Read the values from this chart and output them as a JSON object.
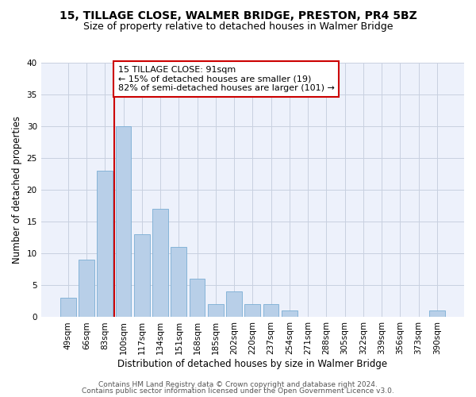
{
  "title": "15, TILLAGE CLOSE, WALMER BRIDGE, PRESTON, PR4 5BZ",
  "subtitle": "Size of property relative to detached houses in Walmer Bridge",
  "xlabel": "Distribution of detached houses by size in Walmer Bridge",
  "ylabel": "Number of detached properties",
  "categories": [
    "49sqm",
    "66sqm",
    "83sqm",
    "100sqm",
    "117sqm",
    "134sqm",
    "151sqm",
    "168sqm",
    "185sqm",
    "202sqm",
    "220sqm",
    "237sqm",
    "254sqm",
    "271sqm",
    "288sqm",
    "305sqm",
    "322sqm",
    "339sqm",
    "356sqm",
    "373sqm",
    "390sqm"
  ],
  "values": [
    3,
    9,
    23,
    30,
    13,
    17,
    11,
    6,
    2,
    4,
    2,
    2,
    1,
    0,
    0,
    0,
    0,
    0,
    0,
    0,
    1
  ],
  "bar_color": "#b8cfe8",
  "bar_edge_color": "#7aadd4",
  "annotation_text": "15 TILLAGE CLOSE: 91sqm\n← 15% of detached houses are smaller (19)\n82% of semi-detached houses are larger (101) →",
  "annotation_box_color": "#ffffff",
  "annotation_box_edge": "#cc0000",
  "ref_line_color": "#cc0000",
  "ylim": [
    0,
    40
  ],
  "yticks": [
    0,
    5,
    10,
    15,
    20,
    25,
    30,
    35,
    40
  ],
  "footer_line1": "Contains HM Land Registry data © Crown copyright and database right 2024.",
  "footer_line2": "Contains public sector information licensed under the Open Government Licence v3.0.",
  "bg_color": "#edf1fb",
  "grid_color": "#c8d0e0",
  "title_fontsize": 10,
  "subtitle_fontsize": 9,
  "axis_label_fontsize": 8.5,
  "tick_fontsize": 7.5,
  "annotation_fontsize": 8,
  "footer_fontsize": 6.5
}
